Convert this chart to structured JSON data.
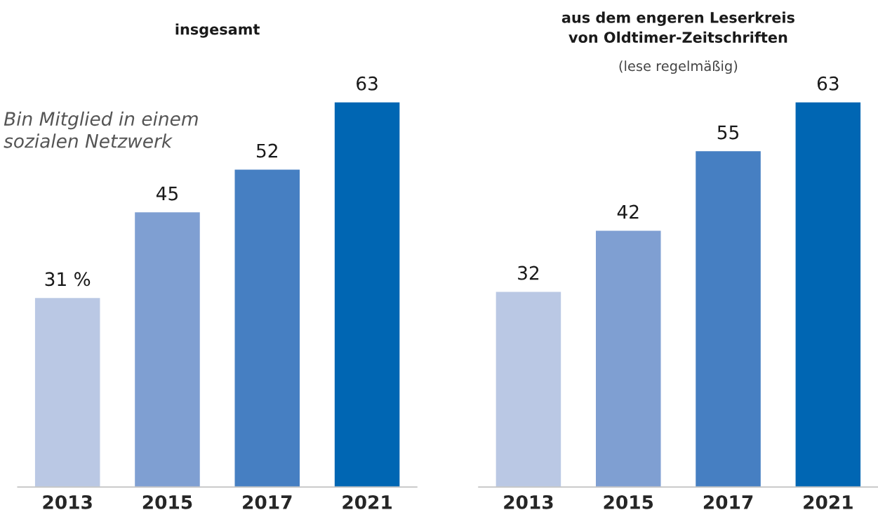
{
  "chart_data": [
    {
      "type": "bar",
      "title": "insgesamt",
      "categories": [
        "2013",
        "2015",
        "2017",
        "2021"
      ],
      "values": [
        31,
        45,
        52,
        63
      ],
      "value_labels": [
        "31 %",
        "45",
        "52",
        "63"
      ],
      "colors": [
        "#bac8e4",
        "#7f9fd2",
        "#467fc2",
        "#0066b3"
      ],
      "annotations": [
        "Bin Mitglied in einem\nsozialen Netzwerk"
      ]
    },
    {
      "type": "bar",
      "title": "aus dem engeren Leserkreis\nvon Oldtimer-Zeitschriften",
      "subtitle": "(lese regelmäßig)",
      "categories": [
        "2013",
        "2015",
        "2017",
        "2021"
      ],
      "values": [
        32,
        42,
        55,
        63
      ],
      "value_labels": [
        "32",
        "42",
        "55",
        "63"
      ],
      "colors": [
        "#bac8e4",
        "#7f9fd2",
        "#467fc2",
        "#0066b3"
      ]
    }
  ]
}
